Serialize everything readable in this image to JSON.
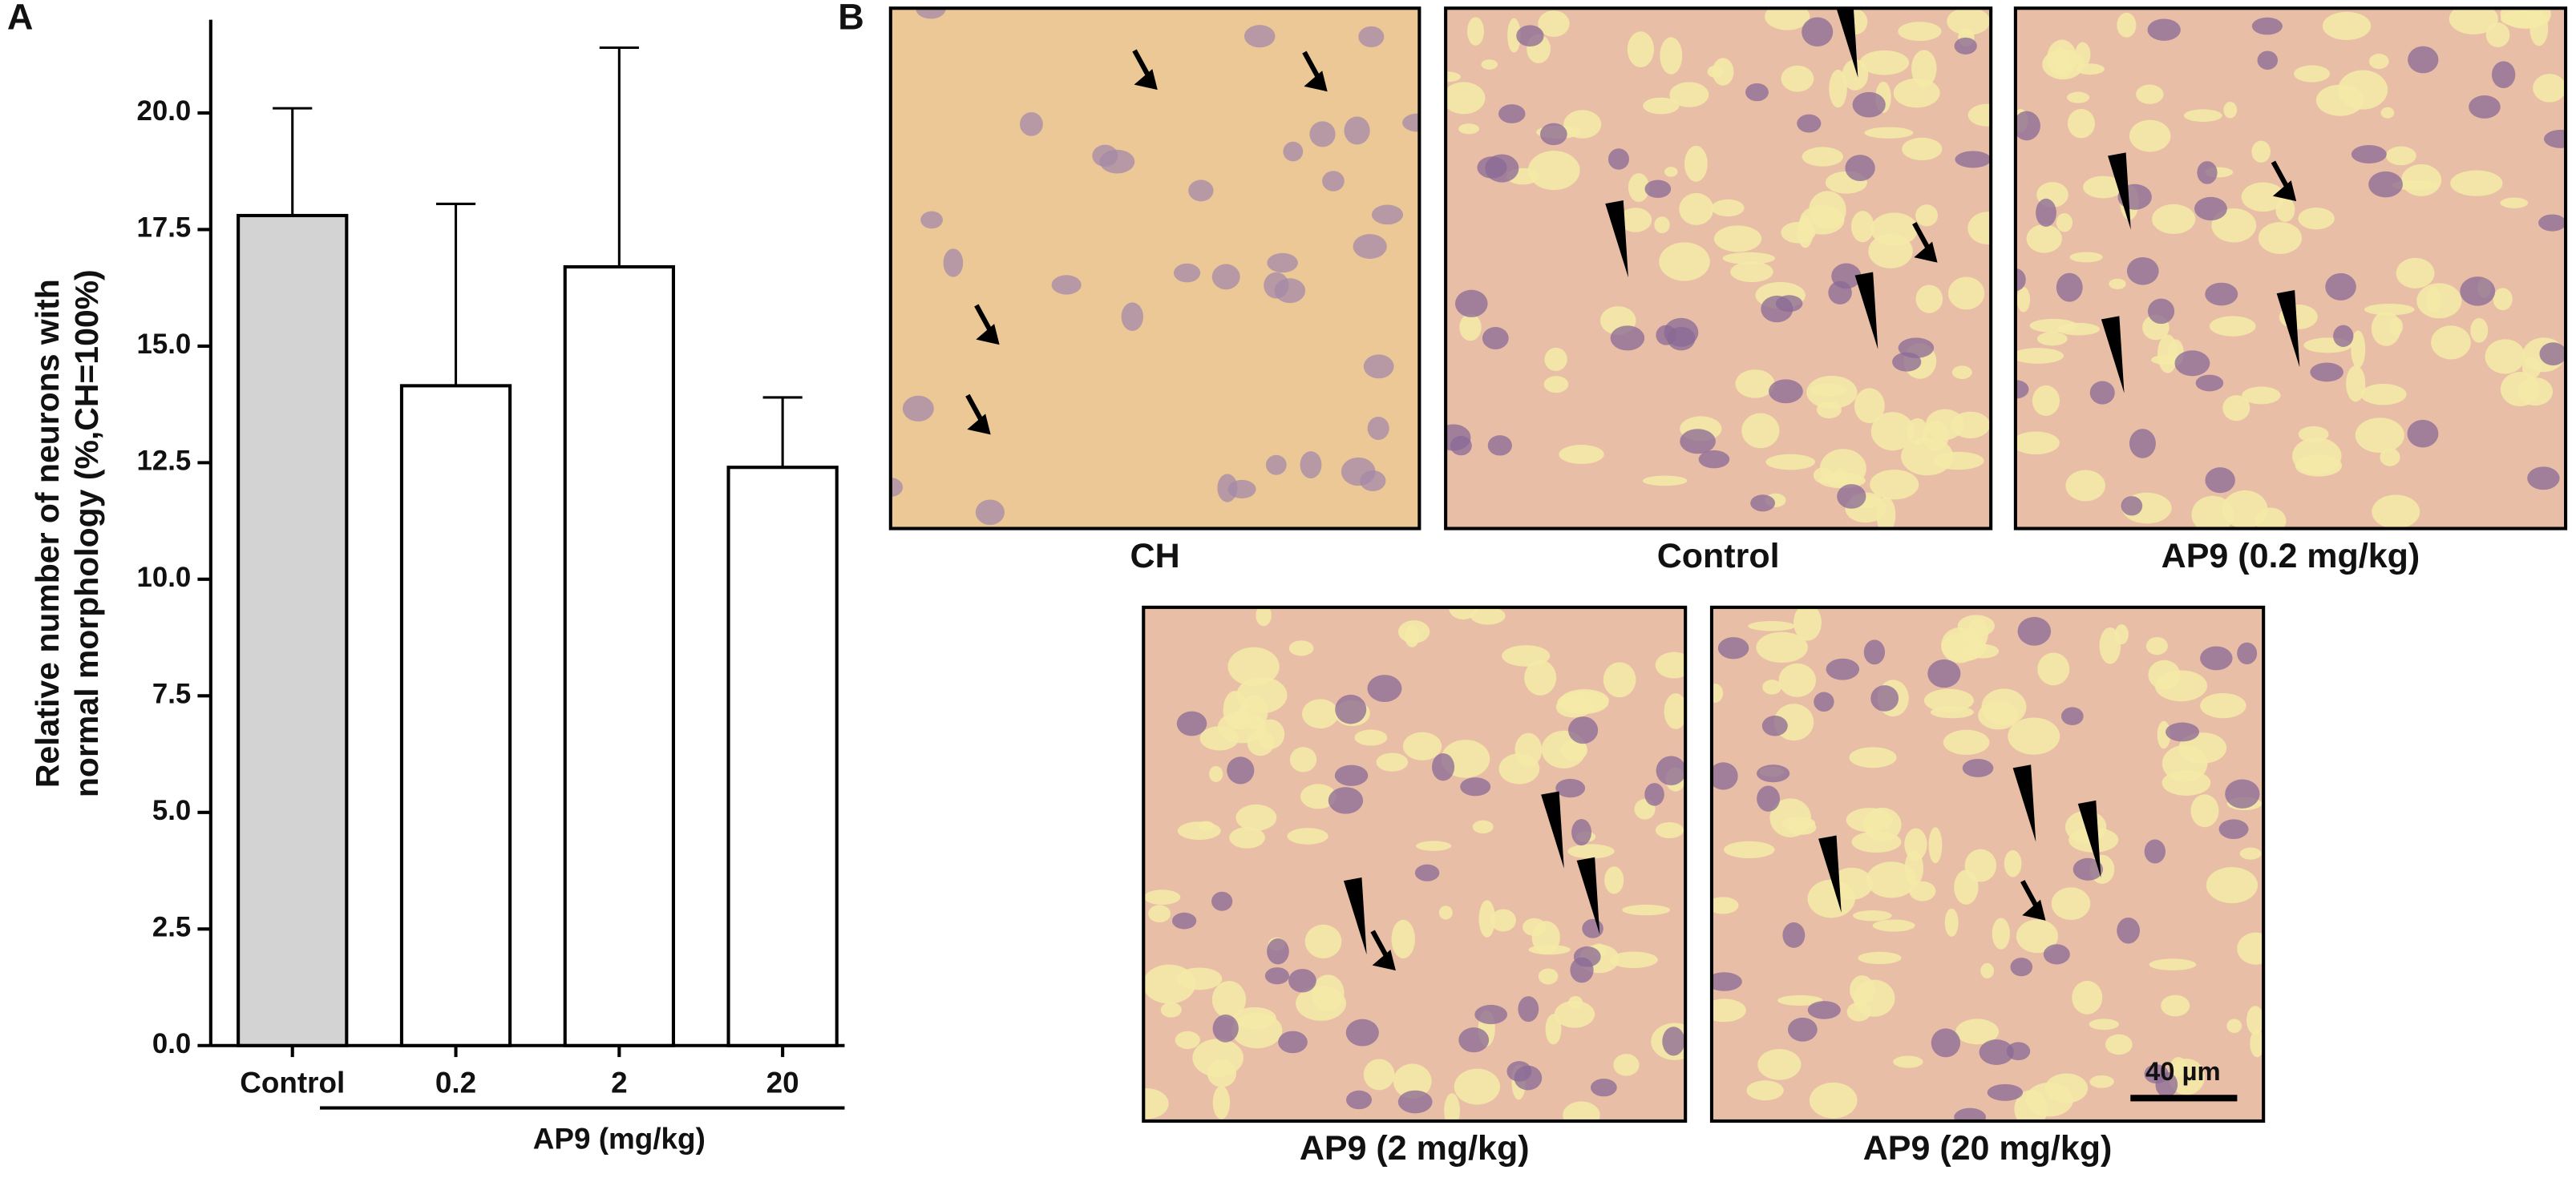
{
  "panel_labels": [
    "A",
    "B"
  ],
  "chart_data": {
    "type": "bar",
    "ylabel": [
      "Relative number of neurons with",
      "normal morphology (%,CH=100%)"
    ],
    "categories": [
      "Control",
      "0.2",
      "2",
      "20"
    ],
    "values": [
      17.8,
      14.15,
      16.7,
      12.4
    ],
    "errors": [
      2.3,
      3.9,
      4.7,
      1.5
    ],
    "colors": [
      "#d3d3d3",
      "#ffffff",
      "#ffffff",
      "#ffffff"
    ],
    "group_label": "AP9 (mg/kg)",
    "ylim": [
      0,
      22
    ],
    "yticks": [
      {
        "value": 0,
        "label": "0.0"
      },
      2.5,
      {
        "value": 5,
        "label": "5.0"
      },
      7.5,
      {
        "value": 10,
        "label": "10.0"
      },
      12.5,
      {
        "value": 15,
        "label": "15.0"
      },
      17.5,
      {
        "value": 20,
        "label": "20.0"
      }
    ]
  },
  "micrographs": [
    {
      "caption": "CH"
    },
    {
      "caption": "Control"
    },
    {
      "caption": "AP9 (0.2 mg/kg)"
    },
    {
      "caption": "AP9 (2 mg/kg)"
    },
    {
      "caption": "AP9 (20 mg/kg)"
    }
  ],
  "scale_bar": "40 µm"
}
